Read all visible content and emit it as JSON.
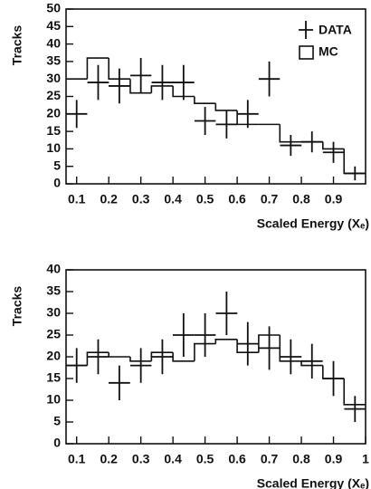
{
  "chart_data": [
    {
      "type": "histogram",
      "ylabel": "Tracks",
      "xlabel": "Scaled Energy (Xₑ)",
      "legend": "upper right",
      "bins": [
        0.067,
        0.133,
        0.2,
        0.267,
        0.333,
        0.4,
        0.467,
        0.533,
        0.6,
        0.667,
        0.733,
        0.8,
        0.867,
        0.933,
        1.0
      ],
      "xlim": [
        0.067,
        1.0
      ],
      "xticks": [
        0.1,
        0.2,
        0.3,
        0.4,
        0.5,
        0.6,
        0.7,
        0.8,
        0.9
      ],
      "ylim": [
        0,
        50
      ],
      "yticks": [
        0,
        5,
        10,
        15,
        20,
        25,
        30,
        35,
        40,
        45,
        50
      ],
      "series": [
        {
          "name": "DATA",
          "color": "#111111",
          "x": [
            0.1,
            0.167,
            0.233,
            0.3,
            0.367,
            0.433,
            0.5,
            0.567,
            0.633,
            0.7,
            0.767,
            0.833,
            0.9,
            0.967
          ],
          "values": [
            20,
            29,
            28,
            31,
            29,
            29,
            18,
            17,
            20,
            30,
            11,
            12,
            9,
            3
          ],
          "errors": [
            4,
            5,
            5,
            5,
            5,
            5,
            4,
            4,
            4,
            5,
            3,
            3,
            3,
            2
          ]
        },
        {
          "name": "MC",
          "color": "#111111",
          "values": [
            30,
            36,
            30,
            26,
            28,
            25,
            23,
            21,
            17,
            17,
            12,
            12,
            10,
            3
          ]
        }
      ]
    },
    {
      "type": "histogram",
      "ylabel": "Tracks",
      "xlabel": "Scaled Energy (Xₑ)",
      "bins": [
        0.067,
        0.133,
        0.2,
        0.267,
        0.333,
        0.4,
        0.467,
        0.533,
        0.6,
        0.667,
        0.733,
        0.8,
        0.867,
        0.933,
        1.0
      ],
      "xlim": [
        0.067,
        1.0
      ],
      "xticks": [
        0.1,
        0.2,
        0.3,
        0.4,
        0.5,
        0.6,
        0.7,
        0.8,
        0.9,
        1
      ],
      "ylim": [
        0,
        40
      ],
      "yticks": [
        0,
        5,
        10,
        15,
        20,
        25,
        30,
        35,
        40
      ],
      "series": [
        {
          "color": "#111111",
          "x": [
            0.1,
            0.167,
            0.233,
            0.3,
            0.367,
            0.433,
            0.5,
            0.567,
            0.633,
            0.7,
            0.767,
            0.833,
            0.9,
            0.967
          ],
          "values": [
            18,
            20,
            14,
            18,
            20,
            25,
            25,
            30,
            23,
            22,
            20,
            19,
            15,
            8
          ],
          "errors": [
            4,
            4,
            4,
            4,
            4,
            5,
            5,
            5,
            5,
            5,
            4,
            4,
            4,
            3
          ]
        },
        {
          "color": "#111111",
          "values": [
            18,
            21,
            20,
            19,
            21,
            19,
            23,
            24,
            21,
            25,
            19,
            18,
            15,
            9
          ]
        }
      ]
    }
  ]
}
